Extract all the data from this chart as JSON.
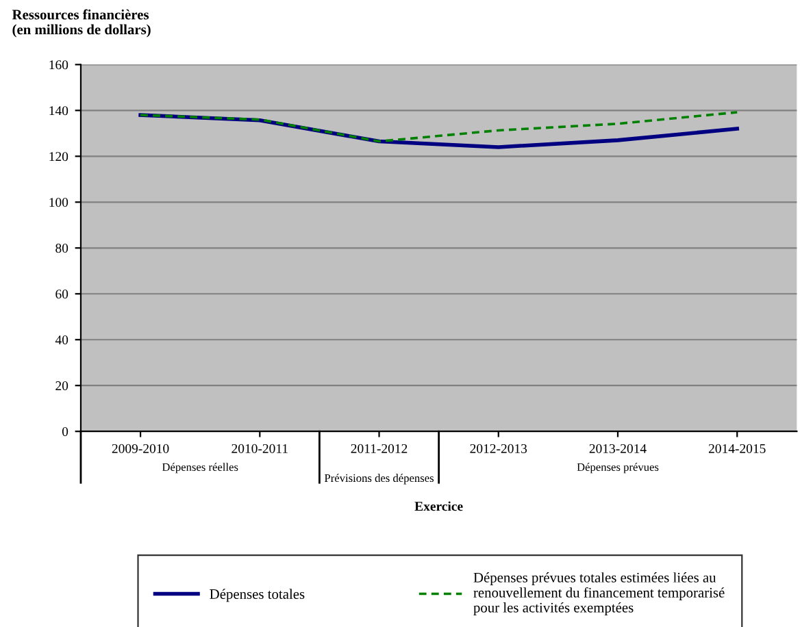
{
  "chart_data": {
    "type": "line",
    "title": "Ressources financières\n(en millions de dollars)",
    "xlabel": "Exercice",
    "categories": [
      "2009-2010",
      "2010-2011",
      "2011-2012",
      "2012-2013",
      "2013-2014",
      "2014-2015"
    ],
    "series": [
      {
        "name": "Dépenses totales",
        "color": "#000080",
        "values": [
          138,
          135.7,
          126.5,
          124,
          127,
          132
        ],
        "line_style": "solid"
      },
      {
        "name": "Dépenses prévues totales estimées liées au\nrenouvellement du financement temporarisé\npour les activités exemptées",
        "color": "#008000",
        "values": [
          138,
          136,
          126.5,
          131.3,
          134.2,
          139.2
        ],
        "line_style": "dashed"
      }
    ],
    "annotations": [
      "Dépenses réelles",
      "Prévisions des dépenses",
      "Dépenses prévues"
    ],
    "ylim": [
      0,
      160
    ],
    "yticks": [
      0,
      20,
      40,
      60,
      80,
      100,
      120,
      140,
      160
    ],
    "grid": "y",
    "legend": "bottom",
    "marker": "none"
  }
}
